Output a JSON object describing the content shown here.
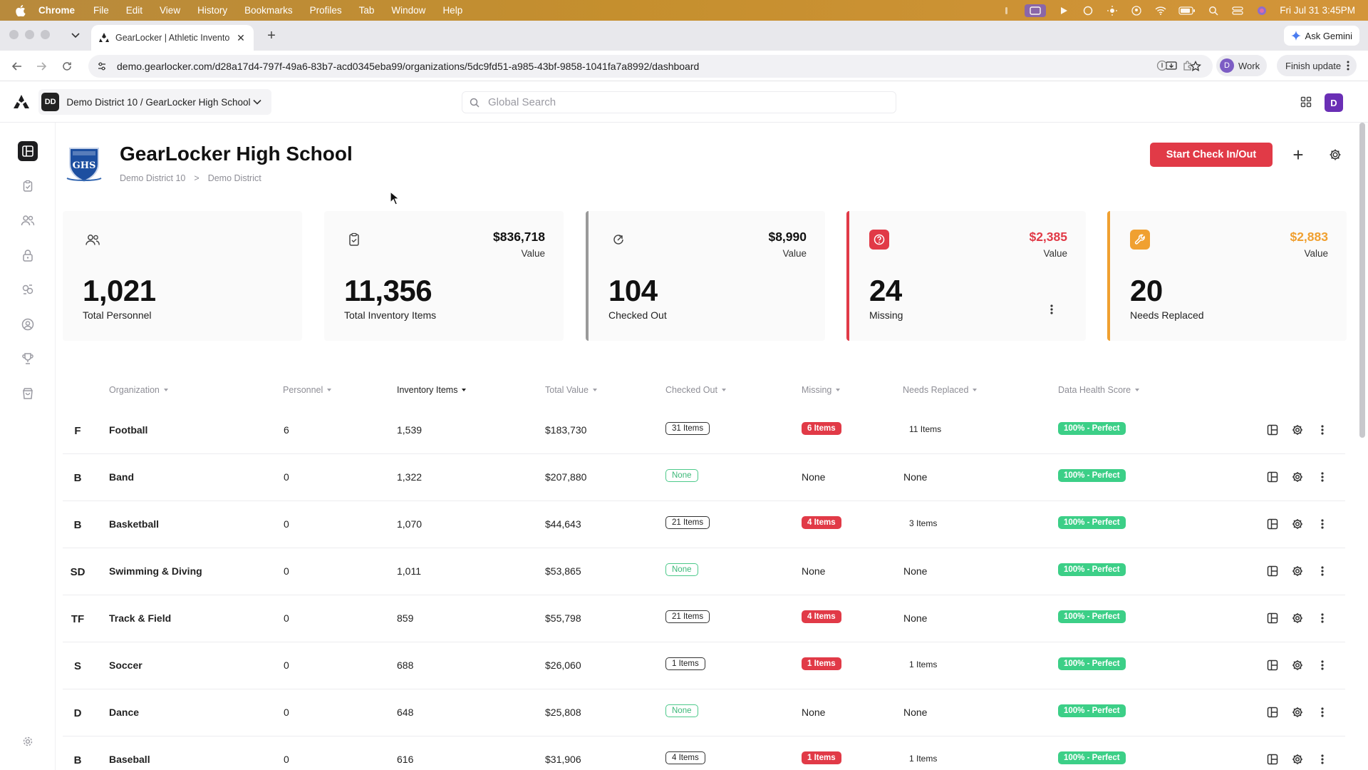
{
  "menubar": {
    "app": "Chrome",
    "items": [
      "File",
      "Edit",
      "View",
      "History",
      "Bookmarks",
      "Profiles",
      "Tab",
      "Window",
      "Help"
    ],
    "clock": "Fri Jul 31  3:45PM"
  },
  "browser": {
    "tab_title": "GearLocker | Athletic Invento",
    "url": "demo.gearlocker.com/d28a17d4-797f-49a6-83b7-acd0345eba99/organizations/5dc9fd51-a985-43bf-9858-1041fa7a8992/dashboard",
    "ask_gemini": "Ask Gemini",
    "profile_initial": "D",
    "profile_name": "Work",
    "finish_update": "Finish update"
  },
  "header": {
    "org_badge": "DD",
    "org_path": "Demo District 10 / GearLocker High School",
    "search_placeholder": "Global Search",
    "user_initial": "D"
  },
  "page": {
    "title": "GearLocker High School",
    "crumb_1": "Demo District 10",
    "crumb_sep": ">",
    "crumb_2": "Demo District",
    "start_button": "Start Check In/Out",
    "crest_text": "GHS"
  },
  "cards": [
    {
      "icon": "personnel-icon",
      "value": "",
      "value_label": "",
      "big": "1,021",
      "label": "Total Personnel"
    },
    {
      "icon": "clipboard-icon",
      "value": "$836,718",
      "value_label": "Value",
      "big": "11,356",
      "label": "Total Inventory Items"
    },
    {
      "icon": "arrow-out-icon",
      "value": "$8,990",
      "value_label": "Value",
      "big": "104",
      "label": "Checked Out"
    },
    {
      "icon": "missing-question-icon",
      "value": "$2,385",
      "value_label": "Value",
      "big": "24",
      "label": "Missing"
    },
    {
      "icon": "wrench-icon",
      "value": "$2,883",
      "value_label": "Value",
      "big": "20",
      "label": "Needs Replaced"
    }
  ],
  "colors": {
    "accent_red": "#e13a47",
    "accent_orange": "#f0a030",
    "health_green": "#3ccf87",
    "missing_value": "#e13a47",
    "needs_value": "#f0a030"
  },
  "table": {
    "columns": [
      "Organization",
      "Personnel",
      "Inventory Items",
      "Total Value",
      "Checked Out",
      "Missing",
      "Needs Replaced",
      "Data Health Score"
    ],
    "rows": [
      {
        "initial": "F",
        "name": "Football",
        "personnel": "6",
        "inventory": "1,539",
        "value": "$183,730",
        "checked_out": "31 Items",
        "missing": "6 Items",
        "needs": "11 Items",
        "health": "100% - Perfect"
      },
      {
        "initial": "B",
        "name": "Band",
        "personnel": "0",
        "inventory": "1,322",
        "value": "$207,880",
        "checked_out": "None",
        "missing": "None",
        "needs": "None",
        "health": "100% - Perfect"
      },
      {
        "initial": "B",
        "name": "Basketball",
        "personnel": "0",
        "inventory": "1,070",
        "value": "$44,643",
        "checked_out": "21 Items",
        "missing": "4 Items",
        "needs": "3 Items",
        "health": "100% - Perfect"
      },
      {
        "initial": "SD",
        "name": "Swimming & Diving",
        "personnel": "0",
        "inventory": "1,011",
        "value": "$53,865",
        "checked_out": "None",
        "missing": "None",
        "needs": "None",
        "health": "100% - Perfect"
      },
      {
        "initial": "TF",
        "name": "Track & Field",
        "personnel": "0",
        "inventory": "859",
        "value": "$55,798",
        "checked_out": "21 Items",
        "missing": "4 Items",
        "needs": "None",
        "health": "100% - Perfect"
      },
      {
        "initial": "S",
        "name": "Soccer",
        "personnel": "0",
        "inventory": "688",
        "value": "$26,060",
        "checked_out": "1 Items",
        "missing": "1 Items",
        "needs": "1 Items",
        "health": "100% - Perfect"
      },
      {
        "initial": "D",
        "name": "Dance",
        "personnel": "0",
        "inventory": "648",
        "value": "$25,808",
        "checked_out": "None",
        "missing": "None",
        "needs": "None",
        "health": "100% - Perfect"
      },
      {
        "initial": "B",
        "name": "Baseball",
        "personnel": "0",
        "inventory": "616",
        "value": "$31,906",
        "checked_out": "4 Items",
        "missing": "1 Items",
        "needs": "1 Items",
        "health": "100% - Perfect"
      }
    ]
  }
}
